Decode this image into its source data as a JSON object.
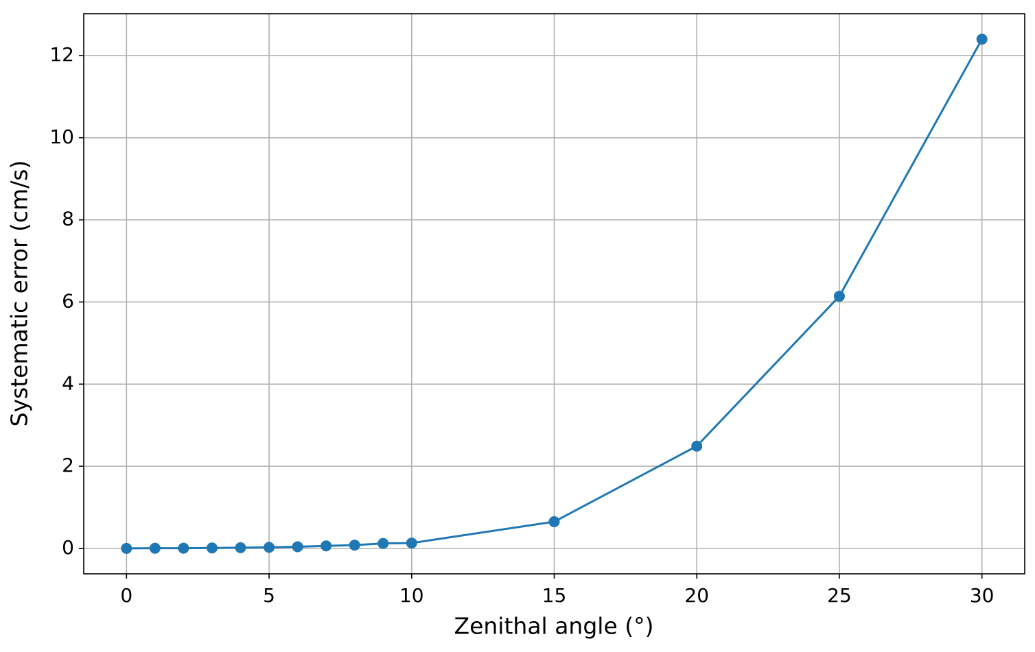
{
  "chart_data": {
    "type": "line",
    "x_label": "Zenithal angle (°)",
    "y_label": "Systematic error (cm/s)",
    "x": [
      0,
      1,
      2,
      3,
      4,
      5,
      6,
      7,
      8,
      9,
      10,
      15,
      20,
      25,
      30
    ],
    "series": [
      {
        "color": "#1f77b4",
        "values": [
          0,
          0.003,
          0.005,
          0.01,
          0.016,
          0.025,
          0.04,
          0.06,
          0.08,
          0.12,
          0.13,
          0.65,
          2.49,
          6.14,
          12.4
        ]
      }
    ],
    "xlim": [
      -1.5,
      31.5
    ],
    "ylim": [
      -0.62,
      13.02
    ],
    "xticks": [
      0,
      5,
      10,
      15,
      20,
      25,
      30
    ],
    "yticks": [
      0,
      2,
      4,
      6,
      8,
      10,
      12
    ],
    "grid": true
  }
}
